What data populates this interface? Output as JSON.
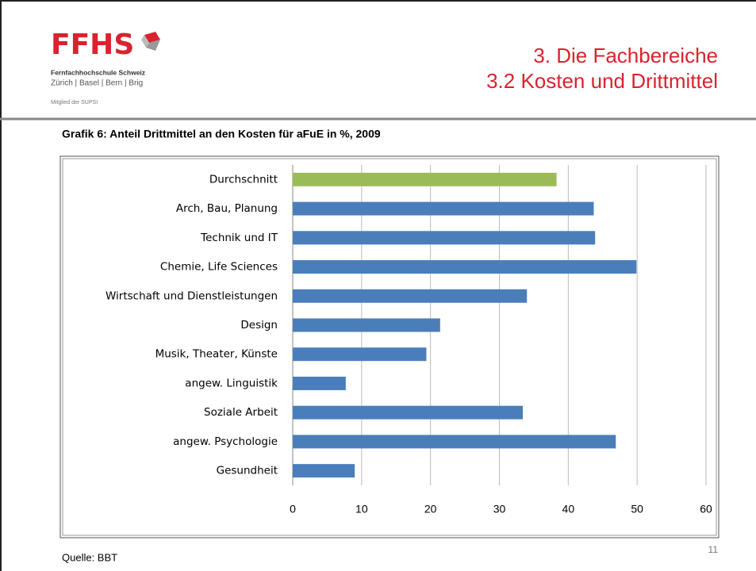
{
  "logo": {
    "name": "FFHS",
    "school": "Fernfachhochschule Schweiz",
    "locations": "Zürich | Basel | Bern | Brig",
    "member": "Mitglied der SUPSI"
  },
  "header": {
    "title": "3. Die Fachbereiche",
    "subtitle": "3.2 Kosten und Drittmittel"
  },
  "chart_data": {
    "type": "bar",
    "orientation": "horizontal",
    "title": "Grafik 6: Anteil Drittmittel an den Kosten für aFuE in %, 2009",
    "categories": [
      "Durchschnitt",
      "Arch, Bau, Planung",
      "Technik und IT",
      "Chemie, Life Sciences",
      "Wirtschaft und Dienstleistungen",
      "Design",
      "Musik, Theater, Künste",
      "angew. Linguistik",
      "Soziale Arbeit",
      "angew. Psychologie",
      "Gesundheit"
    ],
    "values": [
      38.3,
      43.7,
      43.9,
      49.9,
      34.0,
      21.4,
      19.4,
      7.7,
      33.4,
      46.9,
      9.0
    ],
    "colors": [
      "#9bbb59",
      "#4a7ebb",
      "#4a7ebb",
      "#4a7ebb",
      "#4a7ebb",
      "#4a7ebb",
      "#4a7ebb",
      "#4a7ebb",
      "#4a7ebb",
      "#4a7ebb",
      "#4a7ebb"
    ],
    "xlim": [
      0,
      60
    ],
    "xticks": [
      0,
      10,
      20,
      30,
      40,
      50,
      60
    ],
    "grid": true
  },
  "footer": {
    "source": "Quelle: BBT",
    "page": "11"
  }
}
